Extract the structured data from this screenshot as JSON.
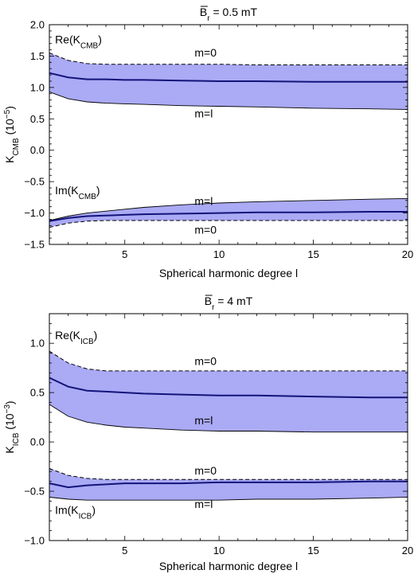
{
  "chart_data": [
    {
      "type": "area",
      "title": "B̄r = 0.5 mT",
      "title_main": "B",
      "title_sub": "r",
      "title_rest": " = 0.5 mT",
      "xlabel": "Spherical harmonic degree l",
      "ylabel_main": "K",
      "ylabel_sub": "CMB",
      "ylabel_unit": " (10",
      "ylabel_exp": "−5",
      "ylabel_close": ")",
      "xlim": [
        1,
        20
      ],
      "ylim": [
        -1.5,
        2.0
      ],
      "xticks": [
        5,
        10,
        15,
        20
      ],
      "yticks": [
        -1.5,
        -1.0,
        -0.5,
        0.0,
        0.5,
        1.0,
        1.5,
        2.0
      ],
      "ytick_labels": [
        "−1.5",
        "−1.0",
        "−0.5",
        "0.0",
        "0.5",
        "1.0",
        "1.5",
        "2.0"
      ],
      "band_color": "#aaaaf5",
      "mean_color": "#13137a",
      "groups": [
        {
          "name": "Re",
          "x": [
            1,
            2,
            3,
            4,
            5,
            6,
            8,
            10,
            12,
            15,
            18,
            20
          ],
          "m0": [
            1.55,
            1.43,
            1.38,
            1.37,
            1.37,
            1.37,
            1.37,
            1.37,
            1.36,
            1.36,
            1.36,
            1.36
          ],
          "ml": [
            0.93,
            0.82,
            0.77,
            0.75,
            0.74,
            0.73,
            0.71,
            0.7,
            0.69,
            0.67,
            0.66,
            0.65
          ],
          "mean": [
            1.23,
            1.16,
            1.13,
            1.13,
            1.12,
            1.12,
            1.11,
            1.1,
            1.1,
            1.09,
            1.09,
            1.09
          ]
        },
        {
          "name": "Im",
          "x": [
            1,
            2,
            3,
            4,
            5,
            6,
            8,
            10,
            12,
            15,
            18,
            20
          ],
          "m0": [
            -1.23,
            -1.16,
            -1.13,
            -1.12,
            -1.12,
            -1.12,
            -1.12,
            -1.12,
            -1.12,
            -1.12,
            -1.12,
            -1.12
          ],
          "ml": [
            -1.12,
            -1.05,
            -1.0,
            -0.97,
            -0.94,
            -0.91,
            -0.87,
            -0.84,
            -0.82,
            -0.8,
            -0.78,
            -0.77
          ],
          "mean": [
            -1.13,
            -1.08,
            -1.05,
            -1.04,
            -1.03,
            -1.02,
            -1.01,
            -1.0,
            -0.99,
            -0.99,
            -0.98,
            -0.98
          ]
        }
      ],
      "annotations": [
        {
          "id": "re-label",
          "text": "Re(K",
          "sub": "CMB",
          "close": ")",
          "x": 1.3,
          "y": 1.7
        },
        {
          "id": "m0-upper",
          "text": "m=0",
          "x": 8.7,
          "y": 1.49
        },
        {
          "id": "ml-upper",
          "text": "m=l",
          "x": 8.7,
          "y": 0.52
        },
        {
          "id": "im-label",
          "text": "Im(K",
          "sub": "CMB",
          "close": ")",
          "x": 1.3,
          "y": -0.7
        },
        {
          "id": "ml-lower",
          "text": "m=l",
          "x": 8.7,
          "y": -0.87
        },
        {
          "id": "m0-lower",
          "text": "m=0",
          "x": 8.7,
          "y": -1.33
        }
      ]
    },
    {
      "type": "area",
      "title": "B̄r = 4 mT",
      "title_main": "B",
      "title_sub": "r",
      "title_rest": " = 4 mT",
      "xlabel": "Spherical harmonic degree l",
      "ylabel_main": "K",
      "ylabel_sub": "ICB",
      "ylabel_unit": " (10",
      "ylabel_exp": "−3",
      "ylabel_close": ")",
      "xlim": [
        1,
        20
      ],
      "ylim": [
        -1.0,
        1.3
      ],
      "xticks": [
        5,
        10,
        15,
        20
      ],
      "yticks": [
        -1.0,
        -0.5,
        0.0,
        0.5,
        1.0
      ],
      "ytick_labels": [
        "−1.0",
        "−0.5",
        "0.0",
        "0.5",
        "1.0"
      ],
      "band_color": "#aaaaf5",
      "mean_color": "#13137a",
      "groups": [
        {
          "name": "Re",
          "x": [
            1,
            2,
            3,
            4,
            5,
            6,
            8,
            10,
            12,
            15,
            18,
            20
          ],
          "m0": [
            0.92,
            0.8,
            0.74,
            0.72,
            0.72,
            0.72,
            0.72,
            0.72,
            0.72,
            0.72,
            0.72,
            0.72
          ],
          "ml": [
            0.38,
            0.26,
            0.2,
            0.17,
            0.15,
            0.14,
            0.12,
            0.11,
            0.11,
            0.1,
            0.1,
            0.1
          ],
          "mean": [
            0.65,
            0.56,
            0.52,
            0.51,
            0.5,
            0.49,
            0.48,
            0.47,
            0.47,
            0.46,
            0.45,
            0.45
          ]
        },
        {
          "name": "Im",
          "x": [
            1,
            2,
            3,
            4,
            5,
            6,
            8,
            10,
            12,
            15,
            18,
            20
          ],
          "m0": [
            -0.27,
            -0.34,
            -0.37,
            -0.38,
            -0.38,
            -0.38,
            -0.38,
            -0.38,
            -0.38,
            -0.38,
            -0.38,
            -0.38
          ],
          "ml": [
            -0.56,
            -0.58,
            -0.59,
            -0.59,
            -0.59,
            -0.59,
            -0.59,
            -0.59,
            -0.58,
            -0.58,
            -0.57,
            -0.56
          ],
          "mean": [
            -0.42,
            -0.46,
            -0.44,
            -0.43,
            -0.42,
            -0.42,
            -0.42,
            -0.41,
            -0.41,
            -0.41,
            -0.4,
            -0.4
          ]
        }
      ],
      "annotations": [
        {
          "id": "re-label",
          "text": "Re(K",
          "sub": "ICB",
          "close": ")",
          "x": 1.3,
          "y": 1.04
        },
        {
          "id": "m0-upper",
          "text": "m=0",
          "x": 8.7,
          "y": 0.78
        },
        {
          "id": "ml-upper",
          "text": "m=l",
          "x": 8.7,
          "y": 0.18
        },
        {
          "id": "m0-lower",
          "text": "m=0",
          "x": 8.7,
          "y": -0.33
        },
        {
          "id": "im-label",
          "text": "Im(K",
          "sub": "ICB",
          "close": ")",
          "x": 1.3,
          "y": -0.73
        },
        {
          "id": "ml-lower",
          "text": "m=l",
          "x": 8.7,
          "y": -0.67
        }
      ]
    }
  ]
}
